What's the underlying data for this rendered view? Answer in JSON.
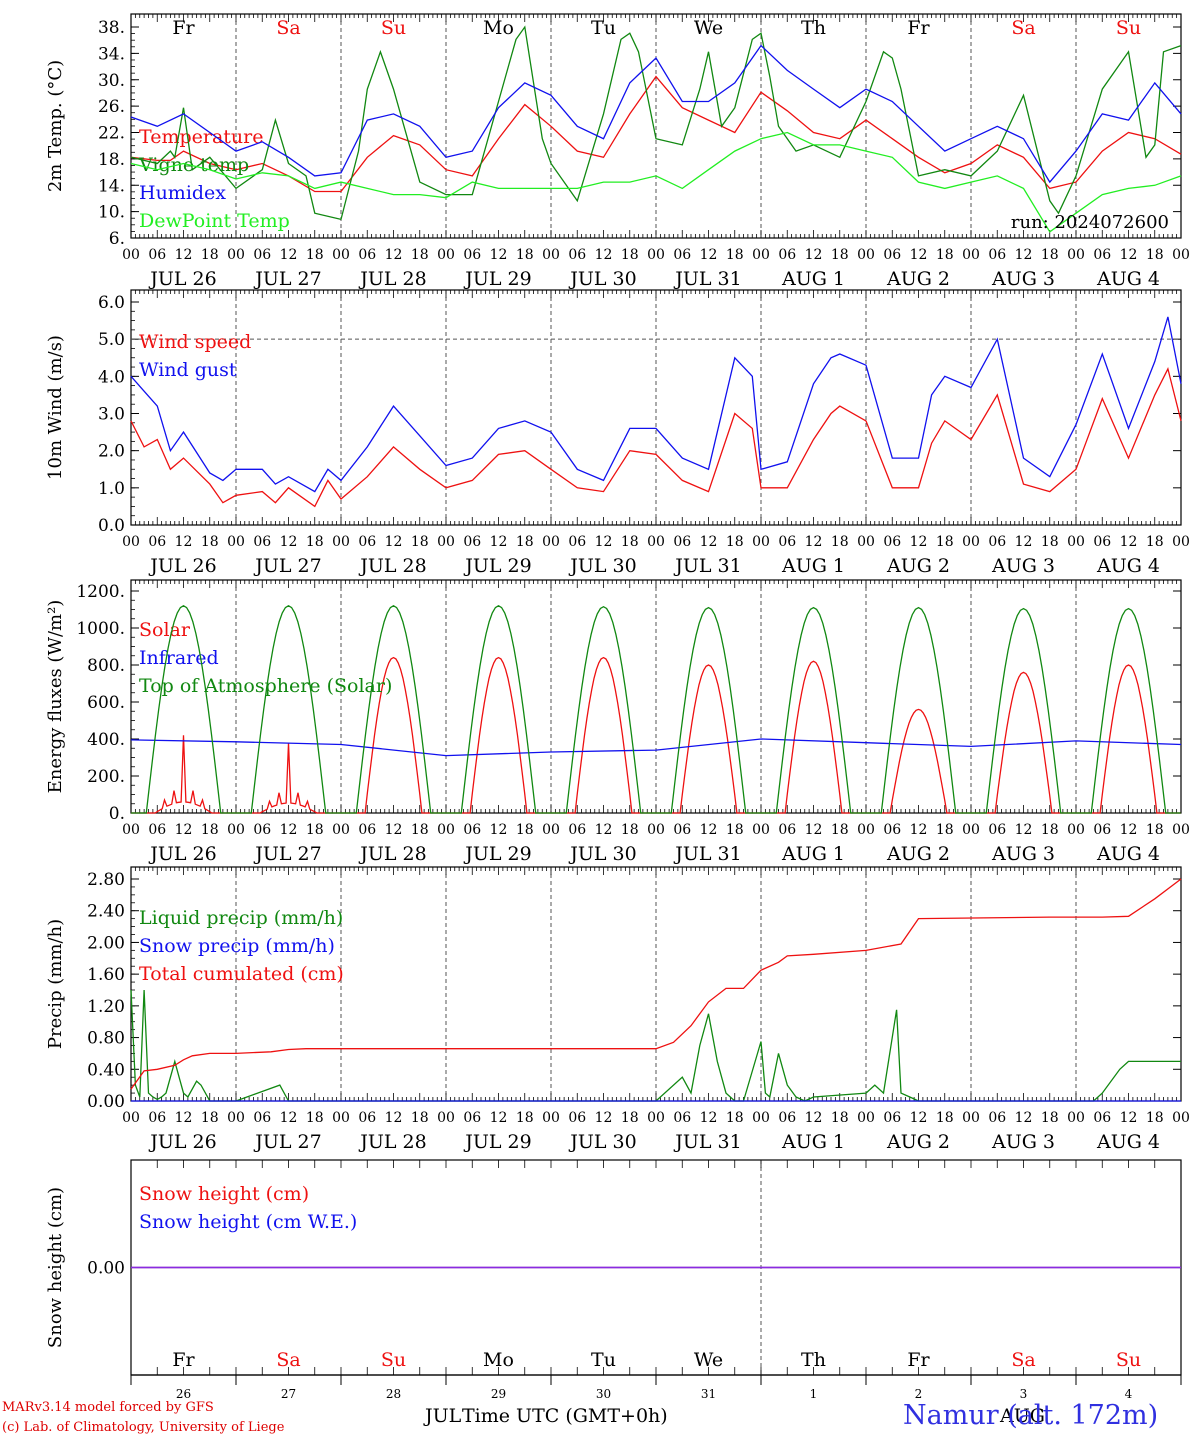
{
  "footer": {
    "credit_line1": "MARv3.14 model forced by GFS",
    "credit_line2": "(c) Lab. of Climatology, University of Liege",
    "month_left": "JUL",
    "xlabel": "Time UTC (GMT+0h)",
    "month_right": "AUG",
    "station": "Namur (alt. 172m)"
  },
  "colors": {
    "red": "#ee1111",
    "dark_green": "#118811",
    "blue": "#1111ee",
    "light_green": "#22ee22",
    "purple": "#8a2be2",
    "grey_dash": "#555555"
  },
  "hour_ticks": [
    "00",
    "06",
    "12",
    "18"
  ],
  "day_labels": [
    "JUL 26",
    "JUL 27",
    "JUL 28",
    "JUL 29",
    "JUL 30",
    "JUL 31",
    "AUG  1",
    "AUG  2",
    "AUG  3",
    "AUG  4"
  ],
  "weekdays": [
    {
      "name": "Fr",
      "color": "black"
    },
    {
      "name": "Sa",
      "color": "red"
    },
    {
      "name": "Su",
      "color": "red"
    },
    {
      "name": "Mo",
      "color": "black"
    },
    {
      "name": "Tu",
      "color": "black"
    },
    {
      "name": "We",
      "color": "black"
    },
    {
      "name": "Th",
      "color": "black"
    },
    {
      "name": "Fr",
      "color": "black"
    },
    {
      "name": "Sa",
      "color": "red"
    },
    {
      "name": "Su",
      "color": "red"
    }
  ],
  "bottom_day_numbers": [
    "26",
    "27",
    "28",
    "29",
    "30",
    "31",
    "1",
    "2",
    "3",
    "4"
  ],
  "chart_data": [
    {
      "id": "temp",
      "type": "line",
      "ylabel": "2m Temp. (°C)",
      "ylim": [
        6,
        40
      ],
      "yticks": [
        "6.",
        "10.",
        "14.",
        "18.",
        "22.",
        "26.",
        "30.",
        "34.",
        "38."
      ],
      "xlim_hours": [
        0,
        240
      ],
      "annotation": "run: 2024072600",
      "series": [
        {
          "name": "Temperature",
          "color": "#ee1111",
          "x": [
            0,
            6,
            9,
            12,
            18,
            24,
            30,
            36,
            42,
            48,
            54,
            60,
            66,
            72,
            78,
            84,
            90,
            96,
            102,
            108,
            114,
            120,
            126,
            132,
            138,
            144,
            150,
            156,
            162,
            168,
            174,
            180,
            186,
            192,
            198,
            204,
            210,
            216,
            222,
            228,
            234,
            240
          ],
          "y": [
            19,
            18.5,
            18.5,
            20,
            18,
            17,
            18,
            16,
            13.5,
            13.5,
            19,
            22.5,
            21,
            17,
            16,
            22,
            27.5,
            24,
            20,
            19,
            26,
            32,
            27,
            25,
            23,
            29.5,
            26.5,
            23,
            22,
            25,
            22,
            19,
            16.5,
            18,
            21,
            19,
            14,
            15,
            20,
            23,
            22,
            19.5
          ]
        },
        {
          "name": "Vigne temp",
          "color": "#118811",
          "x": [
            0,
            6,
            9,
            10,
            12,
            14,
            18,
            24,
            30,
            33,
            36,
            40,
            42,
            48,
            52,
            54,
            57,
            60,
            66,
            72,
            78,
            84,
            88,
            90,
            94,
            96,
            102,
            108,
            112,
            114,
            116,
            120,
            126,
            130,
            132,
            135,
            138,
            142,
            144,
            146,
            148,
            150,
            152,
            156,
            162,
            168,
            172,
            174,
            176,
            180,
            186,
            192,
            198,
            204,
            210,
            212,
            216,
            222,
            228,
            232,
            234,
            236,
            240
          ],
          "y": [
            19,
            18,
            20,
            19,
            27,
            17,
            19,
            14,
            17,
            25,
            18,
            16,
            10,
            9,
            20,
            30,
            36,
            30,
            15,
            13,
            13,
            28,
            38,
            40,
            22,
            18,
            12,
            26,
            38,
            39,
            36,
            22,
            21,
            30,
            36,
            24,
            27,
            38,
            39,
            32,
            24,
            22,
            20,
            21,
            19,
            28,
            36,
            35,
            30,
            16,
            17,
            16,
            20,
            29,
            12,
            10,
            16,
            30,
            36,
            19,
            21,
            36,
            37
          ]
        },
        {
          "name": "Humidex",
          "color": "#1111ee",
          "x": [
            0,
            6,
            12,
            18,
            24,
            30,
            36,
            42,
            48,
            54,
            60,
            66,
            72,
            78,
            84,
            90,
            96,
            102,
            108,
            114,
            120,
            126,
            132,
            138,
            144,
            150,
            156,
            162,
            168,
            174,
            180,
            186,
            192,
            198,
            204,
            210,
            216,
            222,
            228,
            234,
            240
          ],
          "y": [
            25.5,
            24,
            26,
            23,
            20,
            21.5,
            19,
            16,
            16.5,
            25,
            26,
            24,
            19,
            20,
            27,
            31,
            29,
            24,
            22,
            31,
            35,
            28,
            28,
            31,
            37,
            33,
            30,
            27,
            30,
            28,
            24,
            20,
            22,
            24,
            22,
            15,
            20,
            26,
            25,
            31,
            26
          ]
        },
        {
          "name": "DewPoint Temp",
          "color": "#22ee22",
          "x": [
            0,
            6,
            12,
            18,
            24,
            30,
            36,
            42,
            48,
            54,
            60,
            66,
            72,
            78,
            84,
            90,
            96,
            102,
            108,
            114,
            120,
            126,
            132,
            138,
            144,
            150,
            156,
            162,
            168,
            174,
            180,
            186,
            192,
            198,
            204,
            210,
            216,
            222,
            228,
            234,
            240
          ],
          "y": [
            18,
            17,
            18,
            17,
            15.5,
            16.5,
            16,
            14,
            15,
            14,
            13,
            13,
            12.5,
            15,
            14,
            14,
            14,
            14,
            15,
            15,
            16,
            14,
            17,
            20,
            22,
            23,
            21,
            21,
            20,
            19,
            15,
            14,
            15,
            16,
            14,
            7,
            10,
            13,
            14,
            14.5,
            16
          ]
        }
      ]
    },
    {
      "id": "wind",
      "type": "line",
      "ylabel": "10m Wind (m/s)",
      "ylim": [
        0,
        6
      ],
      "yticks": [
        "0.0",
        "1.0",
        "2.0",
        "3.0",
        "4.0",
        "5.0",
        "6.0"
      ],
      "dashed_hline": 5,
      "xlim_hours": [
        0,
        240
      ],
      "series": [
        {
          "name": "Wind speed",
          "color": "#ee1111",
          "x": [
            0,
            3,
            6,
            9,
            12,
            18,
            21,
            24,
            30,
            33,
            36,
            42,
            45,
            48,
            54,
            60,
            66,
            72,
            78,
            84,
            90,
            96,
            102,
            108,
            114,
            120,
            126,
            132,
            138,
            142,
            144,
            150,
            156,
            160,
            162,
            168,
            174,
            180,
            183,
            186,
            192,
            198,
            204,
            210,
            216,
            222,
            228,
            234,
            237,
            240
          ],
          "y": [
            2.8,
            2.1,
            2.3,
            1.5,
            1.8,
            1.1,
            0.6,
            0.8,
            0.9,
            0.6,
            1.0,
            0.5,
            1.2,
            0.7,
            1.3,
            2.1,
            1.5,
            1.0,
            1.2,
            1.9,
            2.0,
            1.5,
            1.0,
            0.9,
            2.0,
            1.9,
            1.2,
            0.9,
            3.0,
            2.6,
            1.0,
            1.0,
            2.3,
            3.0,
            3.2,
            2.8,
            1.0,
            1.0,
            2.2,
            2.8,
            2.3,
            3.5,
            1.1,
            0.9,
            1.5,
            3.4,
            1.8,
            3.5,
            4.2,
            2.8
          ]
        },
        {
          "name": "Wind gust",
          "color": "#1111ee",
          "x": [
            0,
            3,
            6,
            9,
            12,
            18,
            21,
            24,
            30,
            33,
            36,
            42,
            45,
            48,
            54,
            60,
            66,
            72,
            78,
            84,
            90,
            96,
            102,
            108,
            114,
            120,
            126,
            132,
            138,
            142,
            144,
            150,
            156,
            160,
            162,
            168,
            174,
            180,
            183,
            186,
            192,
            198,
            204,
            210,
            216,
            222,
            228,
            234,
            237,
            240
          ],
          "y": [
            4.0,
            3.6,
            3.2,
            2.0,
            2.5,
            1.4,
            1.2,
            1.5,
            1.5,
            1.1,
            1.3,
            0.9,
            1.5,
            1.2,
            2.1,
            3.2,
            2.4,
            1.6,
            1.8,
            2.6,
            2.8,
            2.5,
            1.5,
            1.2,
            2.6,
            2.6,
            1.8,
            1.5,
            4.5,
            4.0,
            1.5,
            1.7,
            3.8,
            4.5,
            4.6,
            4.3,
            1.8,
            1.8,
            3.5,
            4.0,
            3.7,
            5.0,
            1.8,
            1.3,
            2.7,
            4.6,
            2.6,
            4.4,
            5.6,
            3.8
          ]
        }
      ]
    },
    {
      "id": "energy",
      "type": "line",
      "ylabel": "Energy fluxes (W/m²)",
      "ylim": [
        0,
        1200
      ],
      "yticks": [
        "0.",
        "200.",
        "400.",
        "600.",
        "800.",
        "1000.",
        "1200."
      ],
      "xlim_hours": [
        0,
        240
      ],
      "series": [
        {
          "name": "Solar",
          "color": "#ee1111",
          "day_peaks": [
            400,
            360,
            840,
            840,
            840,
            800,
            820,
            560,
            760,
            800
          ]
        },
        {
          "name": "Infrared",
          "color": "#1111ee",
          "x": [
            0,
            24,
            48,
            72,
            96,
            120,
            144,
            168,
            192,
            216,
            240
          ],
          "y": [
            395,
            385,
            370,
            310,
            330,
            340,
            400,
            380,
            360,
            390,
            370
          ]
        },
        {
          "name": "Top of Atmosphere (Solar)",
          "color": "#118811",
          "day_peaks": [
            1120,
            1120,
            1120,
            1120,
            1115,
            1110,
            1110,
            1110,
            1105,
            1105
          ]
        }
      ]
    },
    {
      "id": "precip",
      "type": "line",
      "ylabel": "Precip (mm/h)",
      "ylim": [
        0,
        2.8
      ],
      "yticks": [
        "0.00",
        "0.40",
        "0.80",
        "1.20",
        "1.60",
        "2.00",
        "2.40",
        "2.80"
      ],
      "xlim_hours": [
        0,
        240
      ],
      "series": [
        {
          "name": "Liquid precip (mm/h)",
          "color": "#118811",
          "x": [
            0,
            1,
            2,
            3,
            4,
            5,
            6,
            7,
            8,
            10,
            11,
            12,
            13,
            15,
            16,
            18,
            20,
            24,
            34,
            36,
            40,
            48,
            120,
            126,
            128,
            130,
            132,
            134,
            136,
            138,
            140,
            144,
            145,
            146,
            148,
            150,
            152,
            154,
            156,
            168,
            170,
            172,
            175,
            176,
            178,
            180,
            220,
            222,
            226,
            228,
            240
          ],
          "y": [
            1.4,
            0.2,
            0.05,
            1.4,
            0.1,
            0.05,
            0.02,
            0.05,
            0.1,
            0.5,
            0.3,
            0.1,
            0.05,
            0.25,
            0.2,
            0.0,
            0.0,
            0.0,
            0.2,
            0.0,
            0.0,
            0.0,
            0.0,
            0.3,
            0.1,
            0.7,
            1.1,
            0.5,
            0.1,
            0.0,
            0.0,
            0.75,
            0.1,
            0.05,
            0.6,
            0.2,
            0.05,
            0.0,
            0.05,
            0.1,
            0.2,
            0.1,
            1.15,
            0.1,
            0.05,
            0.0,
            0.0,
            0.1,
            0.4,
            0.5,
            0.5
          ]
        },
        {
          "name": "Snow precip (mm/h)",
          "color": "#1111ee",
          "x": [
            0,
            240
          ],
          "y": [
            0,
            0
          ]
        },
        {
          "name": "Total cumulated (cm)",
          "color": "#ee1111",
          "x": [
            0,
            3,
            6,
            10,
            12,
            14,
            18,
            24,
            32,
            36,
            40,
            48,
            96,
            120,
            124,
            128,
            132,
            136,
            140,
            144,
            148,
            150,
            156,
            168,
            176,
            180,
            210,
            216,
            222,
            228,
            234,
            240
          ],
          "y": [
            0.15,
            0.38,
            0.4,
            0.45,
            0.52,
            0.57,
            0.6,
            0.6,
            0.62,
            0.65,
            0.66,
            0.66,
            0.66,
            0.66,
            0.74,
            0.95,
            1.25,
            1.42,
            1.42,
            1.65,
            1.75,
            1.83,
            1.85,
            1.9,
            1.98,
            2.3,
            2.32,
            2.32,
            2.32,
            2.33,
            2.55,
            2.8
          ]
        }
      ]
    },
    {
      "id": "snow",
      "type": "line",
      "ylabel": "Snow height (cm)",
      "yticks": [
        "0.00"
      ],
      "xlim_hours": [
        0,
        240
      ],
      "series": [
        {
          "name": "Snow height (cm)",
          "color": "#ee1111",
          "x": [
            0,
            240
          ],
          "y": [
            0,
            0
          ]
        },
        {
          "name": "Snow height (cm W.E.)",
          "color": "#1111ee",
          "x": [
            0,
            240
          ],
          "y": [
            0,
            0
          ]
        }
      ]
    }
  ]
}
